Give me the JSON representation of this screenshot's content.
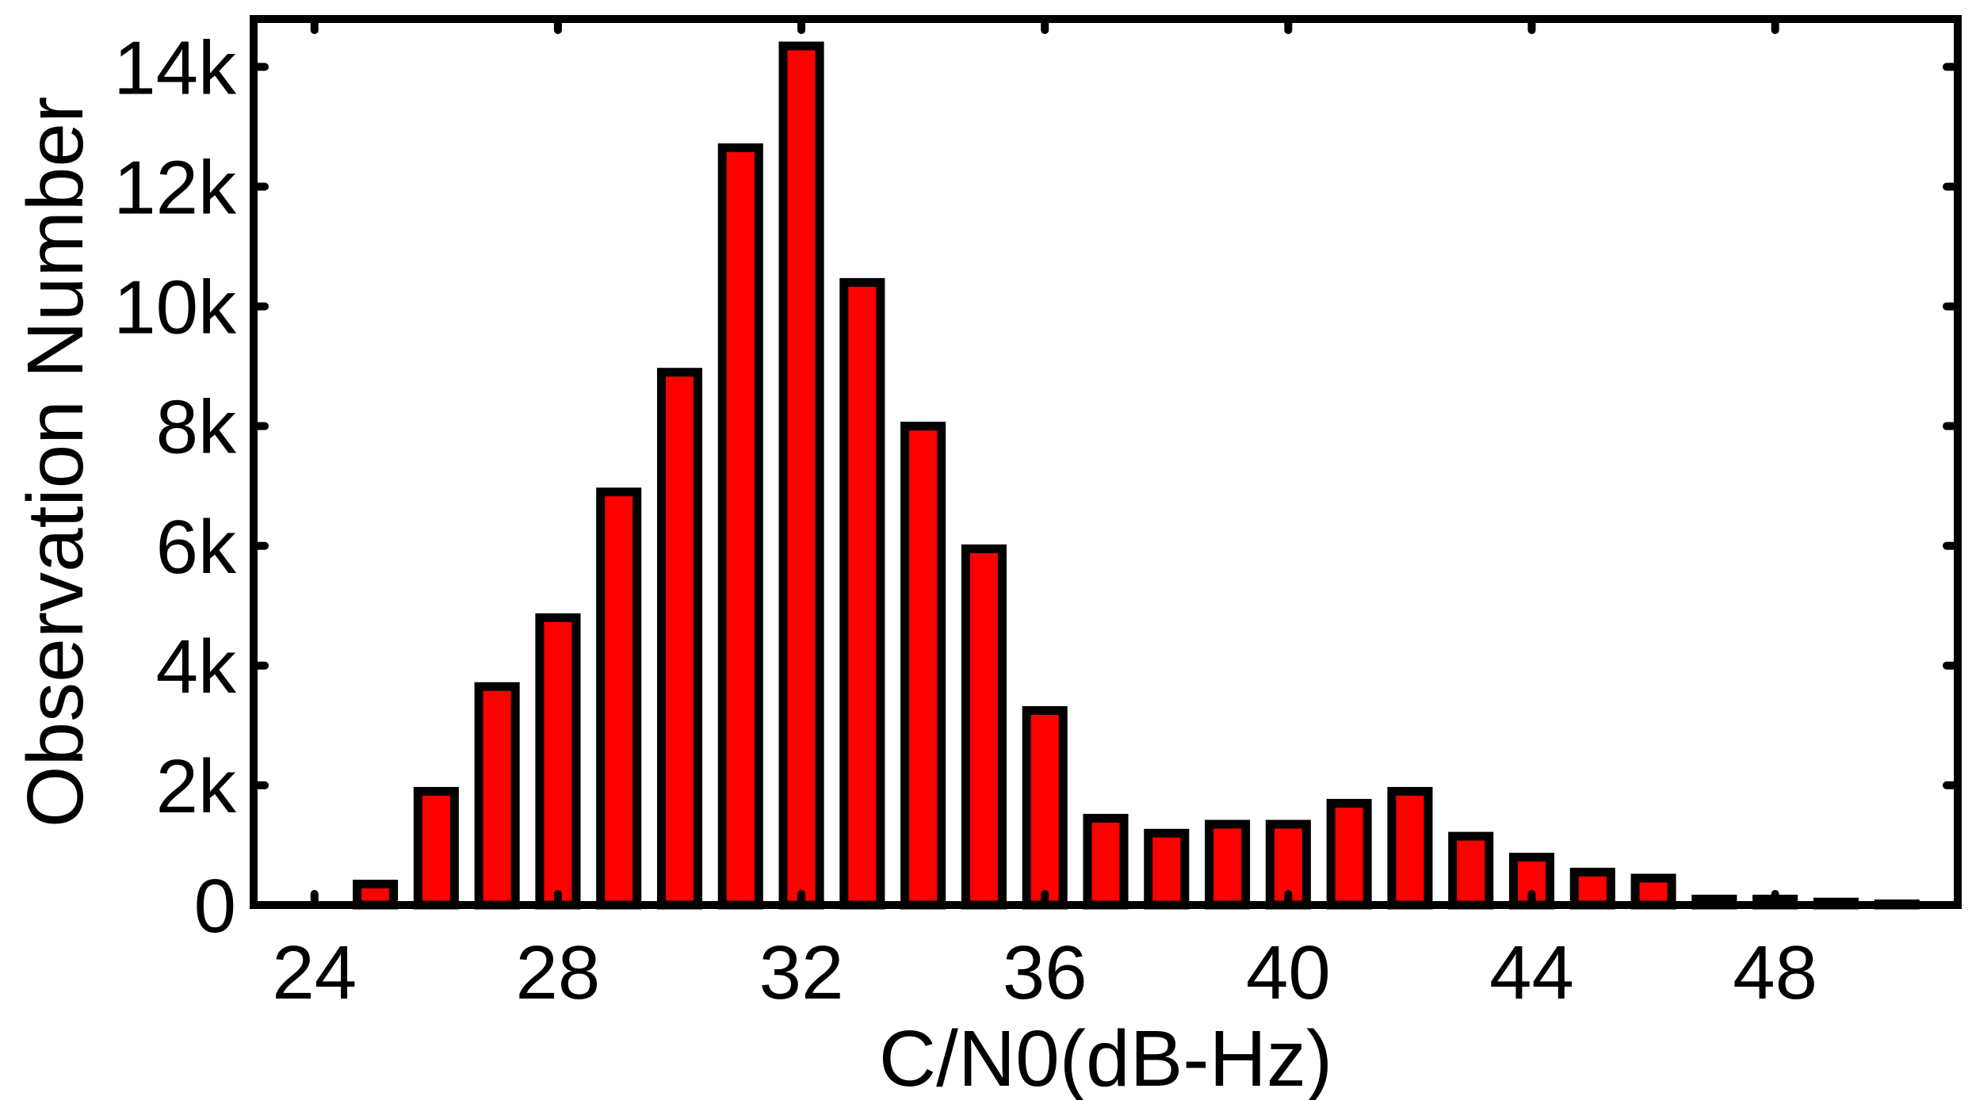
{
  "chart_data": {
    "type": "bar",
    "title": "",
    "xlabel": "C/N0(dB-Hz)",
    "ylabel": "Observation Number",
    "x": [
      24,
      25,
      26,
      27,
      28,
      29,
      30,
      31,
      32,
      33,
      34,
      35,
      36,
      37,
      38,
      39,
      40,
      41,
      42,
      43,
      44,
      45,
      46,
      47,
      48,
      49,
      50
    ],
    "values": [
      0,
      350,
      1900,
      3650,
      4800,
      6900,
      8900,
      12650,
      14350,
      10400,
      8000,
      5950,
      3250,
      1450,
      1200,
      1350,
      1350,
      1700,
      1900,
      1150,
      800,
      550,
      450,
      100,
      100,
      50,
      20
    ],
    "xlim": [
      23,
      51
    ],
    "ylim": [
      0,
      14800
    ],
    "xticks": [
      24,
      28,
      32,
      36,
      40,
      44,
      48
    ],
    "xtick_labels": [
      "24",
      "28",
      "32",
      "36",
      "40",
      "44",
      "48"
    ],
    "yticks": [
      0,
      2000,
      4000,
      6000,
      8000,
      10000,
      12000,
      14000
    ],
    "ytick_labels": [
      "0",
      "2k",
      "4k",
      "6k",
      "8k",
      "10k",
      "12k",
      "14k"
    ],
    "grid": false,
    "bar_color": "#ff0000",
    "edge_color": "#000000"
  }
}
